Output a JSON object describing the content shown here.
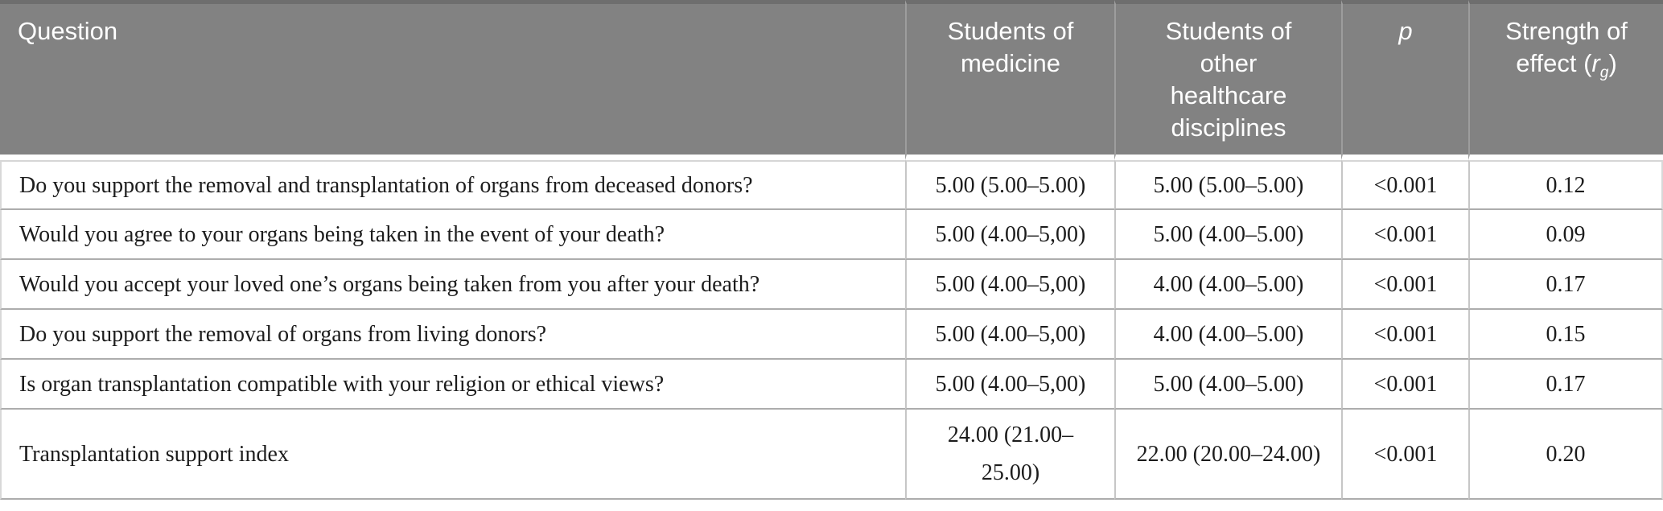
{
  "colors": {
    "header_background": "#828282",
    "header_top_band": "#6e6e6e",
    "header_divider": "#9d9d9d",
    "header_text": "#ffffff",
    "body_text": "#1c1c1c",
    "row_border": "#adadad",
    "column_border": "#c6c6c6",
    "page_background": "#ffffff"
  },
  "table": {
    "header": {
      "question": "Question",
      "medicine": "Students of medicine",
      "other": "Students of other healthcare disciplines",
      "p": "p",
      "effect": {
        "prefix": "Strength of effect (",
        "var": "r",
        "sub": "g",
        "suffix": ")"
      }
    },
    "rows": [
      {
        "question": "Do you support the removal and transplantation of organs from deceased donors?",
        "medicine": "5.00 (5.00–5.00)",
        "other": "5.00 (5.00–5.00)",
        "p": "<0.001",
        "effect": "0.12"
      },
      {
        "question": "Would you agree to your organs being taken in the event of your death?",
        "medicine": "5.00 (4.00–5,00)",
        "other": "5.00 (4.00–5.00)",
        "p": "<0.001",
        "effect": "0.09"
      },
      {
        "question": "Would you accept your loved one’s organs being taken from you after your death?",
        "medicine": "5.00 (4.00–5,00)",
        "other": "4.00 (4.00–5.00)",
        "p": "<0.001",
        "effect": "0.17"
      },
      {
        "question": "Do you support the removal of organs from living donors?",
        "medicine": "5.00 (4.00–5,00)",
        "other": "4.00 (4.00–5.00)",
        "p": "<0.001",
        "effect": "0.15"
      },
      {
        "question": "Is organ transplantation compatible with your religion or ethical views?",
        "medicine": "5.00 (4.00–5,00)",
        "other": "5.00 (4.00–5.00)",
        "p": "<0.001",
        "effect": "0.17"
      },
      {
        "question": "Transplantation support index",
        "medicine": "24.00 (21.00–25.00)",
        "other": "22.00 (20.00–24.00)",
        "p": "<0.001",
        "effect": "0.20"
      }
    ]
  }
}
